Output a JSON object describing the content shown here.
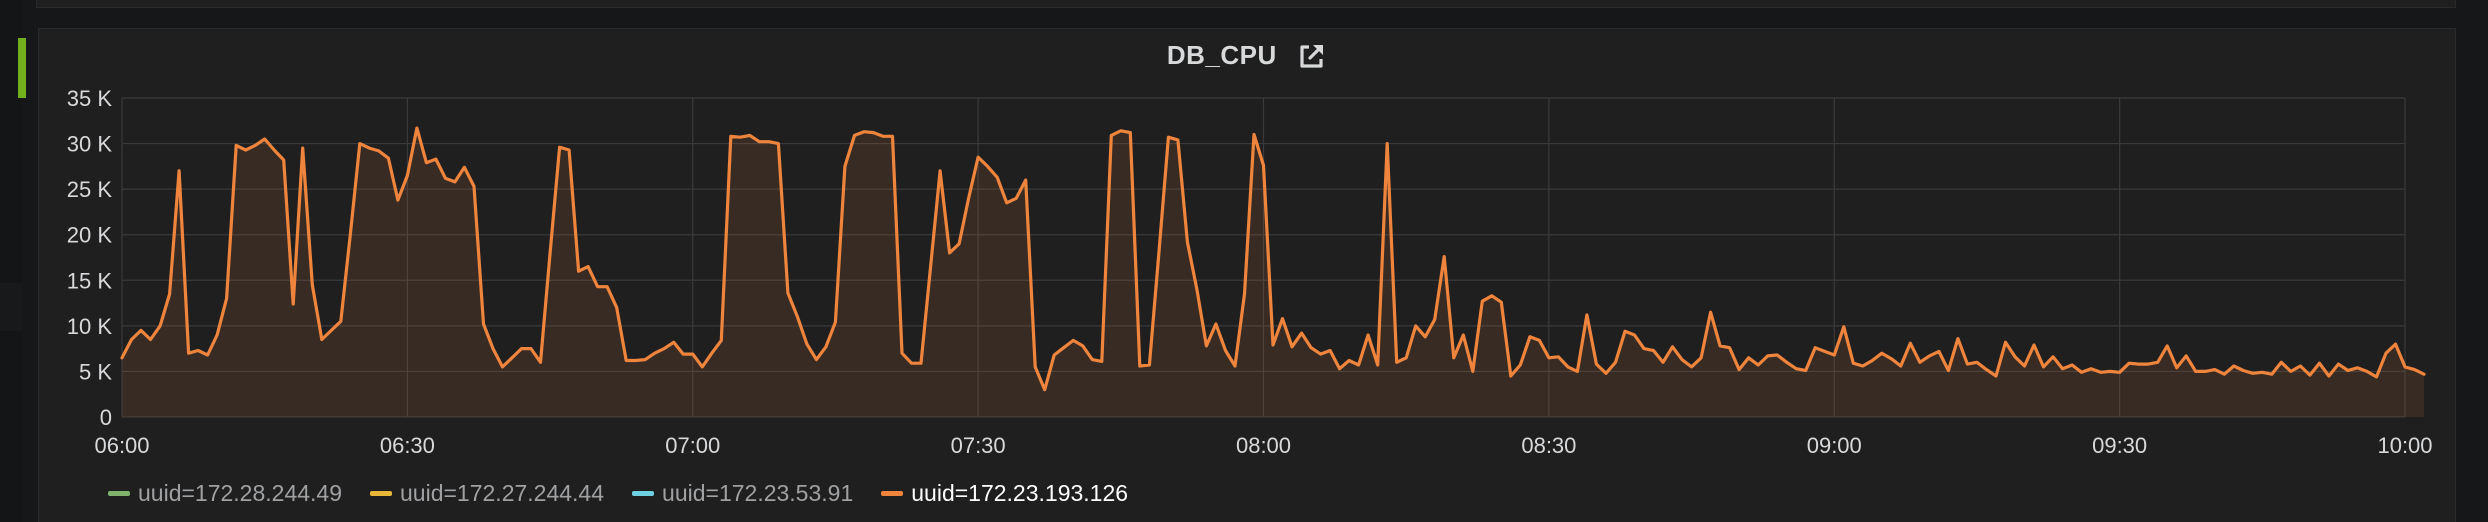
{
  "panel": {
    "title": "DB_CPU",
    "link_icon": "external-link-icon"
  },
  "colors": {
    "background": "#161719",
    "panel_bg": "#1f1f20",
    "grid": "#3a3a3c",
    "axis_text": "#d8d9da",
    "row_marker": "#72b01d"
  },
  "legend": [
    {
      "label": "uuid=172.28.244.49",
      "color": "#7eb26d",
      "active": false
    },
    {
      "label": "uuid=172.27.244.44",
      "color": "#eab839",
      "active": false
    },
    {
      "label": "uuid=172.23.53.91",
      "color": "#6ed0e0",
      "active": false
    },
    {
      "label": "uuid=172.23.193.126",
      "color": "#ef843c",
      "active": true
    }
  ],
  "chart_data": {
    "type": "area",
    "title": "DB_CPU",
    "x_unit": "minutes",
    "xlim": [
      "06:00",
      "10:00"
    ],
    "ylim": [
      0,
      35000
    ],
    "x_ticks": [
      "06:00",
      "06:30",
      "07:00",
      "07:30",
      "08:00",
      "08:30",
      "09:00",
      "09:30",
      "10:00"
    ],
    "y_ticks": [
      "0",
      "5 K",
      "10 K",
      "15 K",
      "20 K",
      "25 K",
      "30 K",
      "35 K"
    ],
    "grid": true,
    "legend_position": "bottom-left",
    "series": [
      {
        "name": "uuid=172.28.244.49",
        "color": "#7eb26d",
        "points": []
      },
      {
        "name": "uuid=172.27.244.44",
        "color": "#eab839",
        "points": []
      },
      {
        "name": "uuid=172.23.53.91",
        "color": "#6ed0e0",
        "points": []
      },
      {
        "name": "uuid=172.23.193.126",
        "color": "#ef843c",
        "points": [
          [
            "06:00",
            6500
          ],
          [
            "06:01",
            8500
          ],
          [
            "06:02",
            9500
          ],
          [
            "06:03",
            8500
          ],
          [
            "06:04",
            10000
          ],
          [
            "06:05",
            13500
          ],
          [
            "06:06",
            27000
          ],
          [
            "06:07",
            7000
          ],
          [
            "06:08",
            7300
          ],
          [
            "06:09",
            6800
          ],
          [
            "06:10",
            9000
          ],
          [
            "06:11",
            13000
          ],
          [
            "06:12",
            29800
          ],
          [
            "06:13",
            29300
          ],
          [
            "06:14",
            29800
          ],
          [
            "06:15",
            30500
          ],
          [
            "06:16",
            29300
          ],
          [
            "06:17",
            28200
          ],
          [
            "06:18",
            12400
          ],
          [
            "06:19",
            29500
          ],
          [
            "06:20",
            14500
          ],
          [
            "06:21",
            8500
          ],
          [
            "06:22",
            9500
          ],
          [
            "06:23",
            10500
          ],
          [
            "06:24",
            20000
          ],
          [
            "06:25",
            30000
          ],
          [
            "06:26",
            29500
          ],
          [
            "06:27",
            29200
          ],
          [
            "06:28",
            28400
          ],
          [
            "06:29",
            23800
          ],
          [
            "06:30",
            26500
          ],
          [
            "06:31",
            31700
          ],
          [
            "06:32",
            27900
          ],
          [
            "06:33",
            28300
          ],
          [
            "06:34",
            26200
          ],
          [
            "06:35",
            25800
          ],
          [
            "06:36",
            27400
          ],
          [
            "06:37",
            25300
          ],
          [
            "06:38",
            10200
          ],
          [
            "06:39",
            7500
          ],
          [
            "06:40",
            5500
          ],
          [
            "06:41",
            6500
          ],
          [
            "06:42",
            7500
          ],
          [
            "06:43",
            7500
          ],
          [
            "06:44",
            6000
          ],
          [
            "06:45",
            18000
          ],
          [
            "06:46",
            29600
          ],
          [
            "06:47",
            29300
          ],
          [
            "06:48",
            16000
          ],
          [
            "06:49",
            16500
          ],
          [
            "06:50",
            14300
          ],
          [
            "06:51",
            14300
          ],
          [
            "06:52",
            12000
          ],
          [
            "06:53",
            6200
          ],
          [
            "06:54",
            6200
          ],
          [
            "06:55",
            6300
          ],
          [
            "06:56",
            7000
          ],
          [
            "06:57",
            7500
          ],
          [
            "06:58",
            8200
          ],
          [
            "06:59",
            6900
          ],
          [
            "07:00",
            6900
          ],
          [
            "07:01",
            5500
          ],
          [
            "07:02",
            7000
          ],
          [
            "07:03",
            8400
          ],
          [
            "07:04",
            30800
          ],
          [
            "07:05",
            30700
          ],
          [
            "07:06",
            30900
          ],
          [
            "07:07",
            30200
          ],
          [
            "07:08",
            30200
          ],
          [
            "07:09",
            30000
          ],
          [
            "07:10",
            13600
          ],
          [
            "07:11",
            11000
          ],
          [
            "07:12",
            8000
          ],
          [
            "07:13",
            6300
          ],
          [
            "07:14",
            7700
          ],
          [
            "07:15",
            10400
          ],
          [
            "07:16",
            27500
          ],
          [
            "07:17",
            30900
          ],
          [
            "07:18",
            31300
          ],
          [
            "07:19",
            31200
          ],
          [
            "07:20",
            30800
          ],
          [
            "07:21",
            30800
          ],
          [
            "07:22",
            7000
          ],
          [
            "07:23",
            5900
          ],
          [
            "07:24",
            5900
          ],
          [
            "07:25",
            16500
          ],
          [
            "07:26",
            27000
          ],
          [
            "07:27",
            18000
          ],
          [
            "07:28",
            19000
          ],
          [
            "07:29",
            24000
          ],
          [
            "07:30",
            28500
          ],
          [
            "07:31",
            27500
          ],
          [
            "07:32",
            26300
          ],
          [
            "07:33",
            23500
          ],
          [
            "07:34",
            24000
          ],
          [
            "07:35",
            26000
          ],
          [
            "07:36",
            5500
          ],
          [
            "07:37",
            3000
          ],
          [
            "07:38",
            6800
          ],
          [
            "07:39",
            7600
          ],
          [
            "07:40",
            8400
          ],
          [
            "07:41",
            7800
          ],
          [
            "07:42",
            6300
          ],
          [
            "07:43",
            6100
          ],
          [
            "07:44",
            30900
          ],
          [
            "07:45",
            31400
          ],
          [
            "07:46",
            31200
          ],
          [
            "07:47",
            5600
          ],
          [
            "07:48",
            5700
          ],
          [
            "07:49",
            18000
          ],
          [
            "07:50",
            30700
          ],
          [
            "07:51",
            30400
          ],
          [
            "07:52",
            19200
          ],
          [
            "07:53",
            14000
          ],
          [
            "07:54",
            7800
          ],
          [
            "07:55",
            10200
          ],
          [
            "07:56",
            7300
          ],
          [
            "07:57",
            5600
          ],
          [
            "07:58",
            13500
          ],
          [
            "07:59",
            31000
          ],
          [
            "08:00",
            27600
          ],
          [
            "08:01",
            7900
          ],
          [
            "08:02",
            10800
          ],
          [
            "08:03",
            7700
          ],
          [
            "08:04",
            9200
          ],
          [
            "08:05",
            7600
          ],
          [
            "08:06",
            6900
          ],
          [
            "08:07",
            7300
          ],
          [
            "08:08",
            5300
          ],
          [
            "08:09",
            6200
          ],
          [
            "08:10",
            5700
          ],
          [
            "08:11",
            9000
          ],
          [
            "08:12",
            5700
          ],
          [
            "08:13",
            30000
          ],
          [
            "08:14",
            6000
          ],
          [
            "08:15",
            6500
          ],
          [
            "08:16",
            10000
          ],
          [
            "08:17",
            8800
          ],
          [
            "08:18",
            10700
          ],
          [
            "08:19",
            17600
          ],
          [
            "08:20",
            6500
          ],
          [
            "08:21",
            9000
          ],
          [
            "08:22",
            5000
          ],
          [
            "08:23",
            12700
          ],
          [
            "08:24",
            13300
          ],
          [
            "08:25",
            12600
          ],
          [
            "08:26",
            4500
          ],
          [
            "08:27",
            5700
          ],
          [
            "08:28",
            8800
          ],
          [
            "08:29",
            8400
          ],
          [
            "08:30",
            6500
          ],
          [
            "08:31",
            6600
          ],
          [
            "08:32",
            5500
          ],
          [
            "08:33",
            5000
          ],
          [
            "08:34",
            11200
          ],
          [
            "08:35",
            5800
          ],
          [
            "08:36",
            4800
          ],
          [
            "08:37",
            6000
          ],
          [
            "08:38",
            9400
          ],
          [
            "08:39",
            9000
          ],
          [
            "08:40",
            7500
          ],
          [
            "08:41",
            7300
          ],
          [
            "08:42",
            6000
          ],
          [
            "08:43",
            7700
          ],
          [
            "08:44",
            6300
          ],
          [
            "08:45",
            5500
          ],
          [
            "08:46",
            6500
          ],
          [
            "08:47",
            11500
          ],
          [
            "08:48",
            7800
          ],
          [
            "08:49",
            7600
          ],
          [
            "08:50",
            5200
          ],
          [
            "08:51",
            6500
          ],
          [
            "08:52",
            5700
          ],
          [
            "08:53",
            6700
          ],
          [
            "08:54",
            6800
          ],
          [
            "08:55",
            6000
          ],
          [
            "08:56",
            5300
          ],
          [
            "08:57",
            5100
          ],
          [
            "08:58",
            7600
          ],
          [
            "08:59",
            7200
          ],
          [
            "09:00",
            6800
          ],
          [
            "09:01",
            9900
          ],
          [
            "09:02",
            5900
          ],
          [
            "09:03",
            5600
          ],
          [
            "09:04",
            6200
          ],
          [
            "09:05",
            7000
          ],
          [
            "09:06",
            6400
          ],
          [
            "09:07",
            5600
          ],
          [
            "09:08",
            8100
          ],
          [
            "09:09",
            6000
          ],
          [
            "09:10",
            6700
          ],
          [
            "09:11",
            7200
          ],
          [
            "09:12",
            5100
          ],
          [
            "09:13",
            8600
          ],
          [
            "09:14",
            5800
          ],
          [
            "09:15",
            6000
          ],
          [
            "09:16",
            5200
          ],
          [
            "09:17",
            4500
          ],
          [
            "09:18",
            8200
          ],
          [
            "09:19",
            6600
          ],
          [
            "09:20",
            5600
          ],
          [
            "09:21",
            7900
          ],
          [
            "09:22",
            5500
          ],
          [
            "09:23",
            6600
          ],
          [
            "09:24",
            5300
          ],
          [
            "09:25",
            5700
          ],
          [
            "09:26",
            4900
          ],
          [
            "09:27",
            5300
          ],
          [
            "09:28",
            4900
          ],
          [
            "09:29",
            5000
          ],
          [
            "09:30",
            4900
          ],
          [
            "09:31",
            5900
          ],
          [
            "09:32",
            5800
          ],
          [
            "09:33",
            5800
          ],
          [
            "09:34",
            6000
          ],
          [
            "09:35",
            7800
          ],
          [
            "09:36",
            5400
          ],
          [
            "09:37",
            6700
          ],
          [
            "09:38",
            5000
          ],
          [
            "09:39",
            5000
          ],
          [
            "09:40",
            5200
          ],
          [
            "09:41",
            4700
          ],
          [
            "09:42",
            5600
          ],
          [
            "09:43",
            5100
          ],
          [
            "09:44",
            4800
          ],
          [
            "09:45",
            4900
          ],
          [
            "09:46",
            4700
          ],
          [
            "09:47",
            6000
          ],
          [
            "09:48",
            5000
          ],
          [
            "09:49",
            5600
          ],
          [
            "09:50",
            4600
          ],
          [
            "09:51",
            5900
          ],
          [
            "09:52",
            4500
          ],
          [
            "09:53",
            5800
          ],
          [
            "09:54",
            5100
          ],
          [
            "09:55",
            5400
          ],
          [
            "09:56",
            5000
          ],
          [
            "09:57",
            4400
          ],
          [
            "09:58",
            7000
          ],
          [
            "09:59",
            8000
          ],
          [
            "10:00",
            5500
          ],
          [
            "10:01",
            5200
          ],
          [
            "10:02",
            4700
          ]
        ]
      }
    ]
  }
}
